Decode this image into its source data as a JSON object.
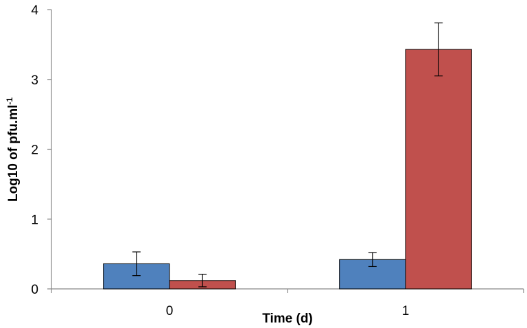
{
  "chart_data": {
    "type": "bar",
    "title": "",
    "xlabel": "Time (d)",
    "ylabel": "Log10 of pfu.ml",
    "ylabel_superscript": "-1",
    "categories": [
      "0",
      "1"
    ],
    "ylim": [
      0,
      4
    ],
    "yticks": [
      "0",
      "1",
      "2",
      "3",
      "4"
    ],
    "grid": false,
    "legend": "none",
    "series": [
      {
        "name": "Series 1",
        "color": "#4f81bd",
        "values": [
          0.36,
          0.42
        ],
        "errors": [
          0.17,
          0.1
        ]
      },
      {
        "name": "Series 2",
        "color": "#c0504d",
        "values": [
          0.12,
          3.43
        ],
        "errors": [
          0.09,
          0.38
        ]
      }
    ]
  }
}
